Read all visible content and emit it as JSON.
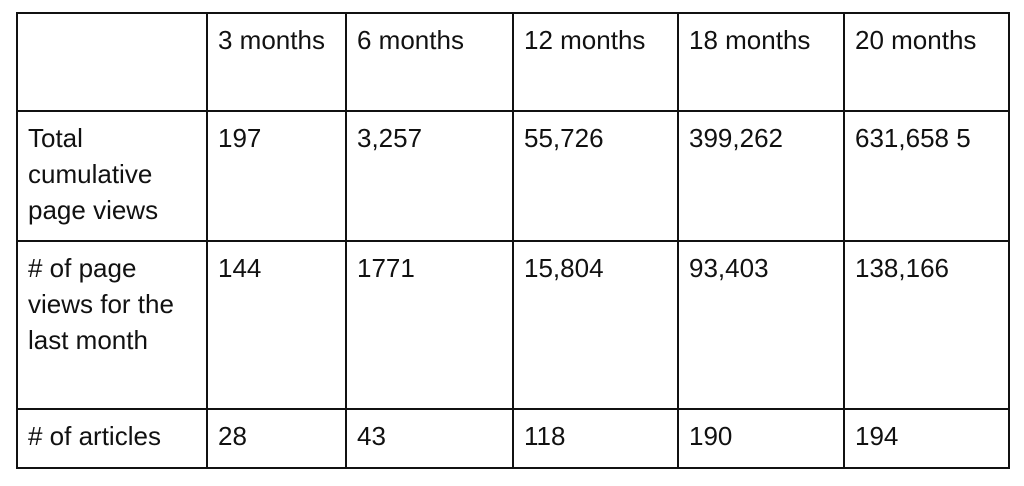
{
  "table": {
    "columns": [
      "3 months",
      "6 months",
      "12 months",
      "18 months",
      "20 months"
    ],
    "rows": [
      [
        "Total cumulative page views",
        "197",
        "3,257",
        "55,726",
        "399,262",
        "631,658 5"
      ],
      [
        "# of page views for the last month",
        "144",
        "1771",
        "15,804",
        "93,403",
        "138,166"
      ],
      [
        "# of articles",
        "28",
        "43",
        "118",
        "190",
        "194"
      ]
    ]
  }
}
